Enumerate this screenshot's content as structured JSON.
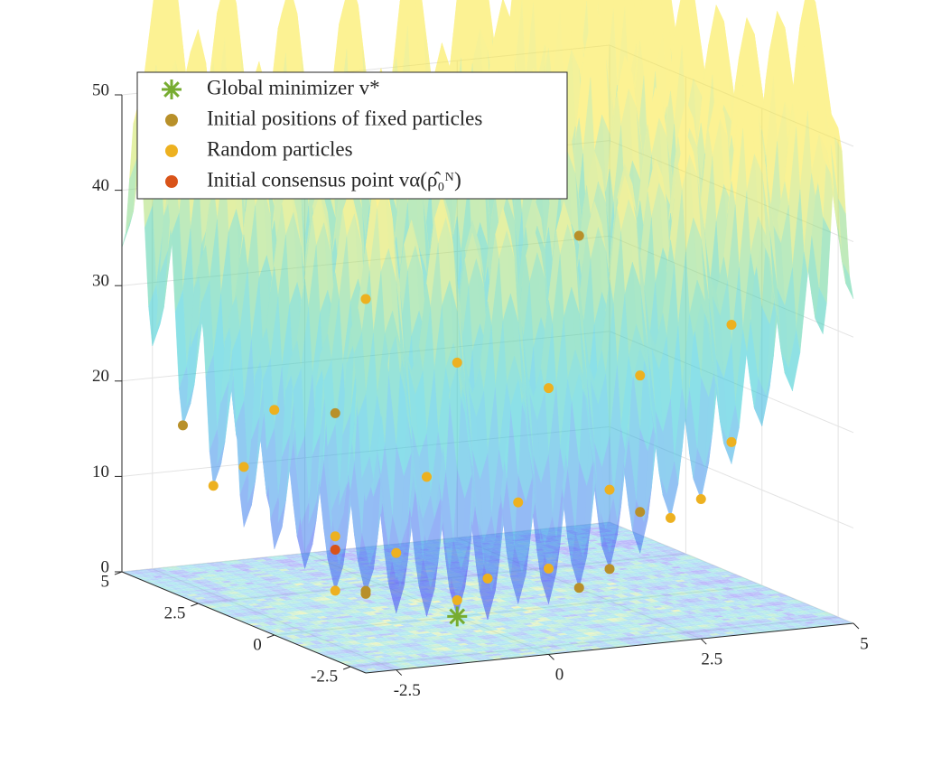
{
  "chart_data": {
    "type": "surface3d",
    "xlim": [
      -3,
      5
    ],
    "ylim": [
      -3,
      5
    ],
    "zlim": [
      0,
      50
    ],
    "xticks": [
      -2.5,
      0,
      2.5,
      5
    ],
    "yticks": [
      -2.5,
      0,
      2.5,
      5
    ],
    "zticks": [
      0,
      10,
      20,
      30,
      40,
      50
    ],
    "grid": true,
    "legend": "upper left",
    "series": [
      {
        "name": "Global minimizer v*",
        "color": "#77ac30",
        "marker": "star",
        "x": [
          0
        ],
        "y": [
          0
        ],
        "z": [
          0
        ]
      },
      {
        "name": "Initial positions of fixed particles",
        "color": "#b8902a",
        "marker": "circle",
        "x": [
          4,
          -3,
          1,
          2,
          -1,
          3,
          0,
          -2
        ],
        "y": [
          4,
          3,
          -2,
          -1,
          1,
          0,
          4,
          -1
        ],
        "z": [
          32,
          18,
          5,
          5,
          2,
          9,
          16,
          5
        ]
      },
      {
        "name": "Random particles",
        "color": "#edb120",
        "marker": "circle",
        "x": [
          4,
          2,
          -3,
          3,
          1,
          -1,
          0,
          2,
          -2,
          3,
          1,
          4,
          -3,
          0,
          2,
          5,
          1,
          -1,
          3,
          -2
        ],
        "y": [
          2,
          4,
          2,
          -2,
          1,
          -2,
          2,
          2,
          3,
          3,
          3,
          -1,
          -2,
          -3,
          -3,
          1,
          5,
          4,
          1,
          0
        ],
        "z": [
          20,
          20,
          13,
          13,
          2,
          5,
          4,
          8,
          13,
          18,
          10,
          17,
          13,
          9,
          13,
          26,
          26,
          17,
          10,
          4
        ]
      },
      {
        "name": "Initial consensus point vα(ρ̂₀ᴺ)",
        "color": "#d95319",
        "marker": "circle",
        "x": [
          -1
        ],
        "y": [
          2
        ],
        "z": [
          5
        ]
      }
    ]
  }
}
